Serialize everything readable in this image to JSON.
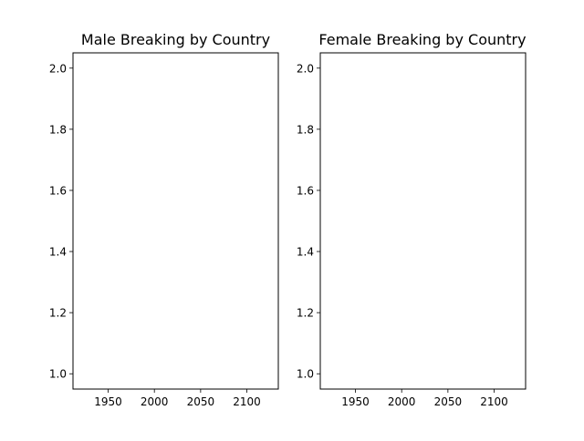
{
  "chart_data": [
    {
      "type": "line",
      "title": "Male Breaking by Country",
      "xlabel": "",
      "ylabel": "",
      "xlim": [
        1912,
        2134
      ],
      "ylim": [
        0.95,
        2.05
      ],
      "xticks": [
        1950,
        2000,
        2050,
        2100
      ],
      "xtick_labels": [
        "1950",
        "2000",
        "2050",
        "2100"
      ],
      "yticks": [
        1.0,
        1.2,
        1.4,
        1.6,
        1.8,
        2.0
      ],
      "ytick_labels": [
        "1.0",
        "1.2",
        "1.4",
        "1.6",
        "1.8",
        "2.0"
      ],
      "series": [],
      "grid": false,
      "legend": "none"
    },
    {
      "type": "line",
      "title": "Female Breaking by Country",
      "xlabel": "",
      "ylabel": "",
      "xlim": [
        1912,
        2134
      ],
      "ylim": [
        0.95,
        2.05
      ],
      "xticks": [
        1950,
        2000,
        2050,
        2100
      ],
      "xtick_labels": [
        "1950",
        "2000",
        "2050",
        "2100"
      ],
      "yticks": [
        1.0,
        1.2,
        1.4,
        1.6,
        1.8,
        2.0
      ],
      "ytick_labels": [
        "1.0",
        "1.2",
        "1.4",
        "1.6",
        "1.8",
        "2.0"
      ],
      "series": [],
      "grid": false,
      "legend": "none"
    }
  ]
}
